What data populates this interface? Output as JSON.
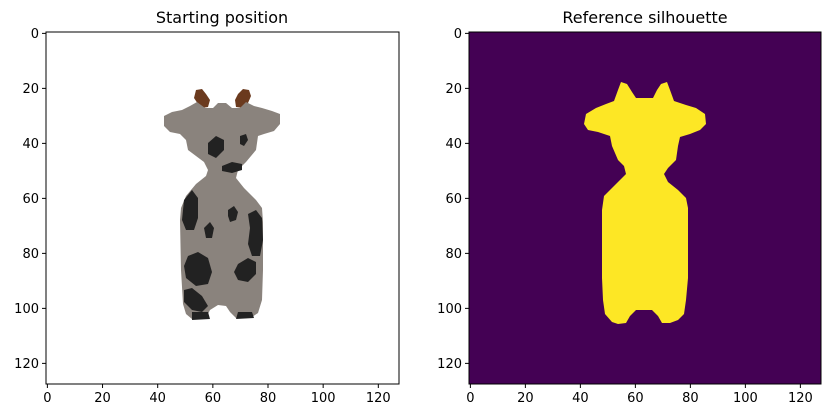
{
  "chart_data": [
    {
      "type": "image",
      "title": "Starting position",
      "xlim": [
        0,
        127
      ],
      "ylim": [
        127,
        0
      ],
      "xticks": [
        0,
        20,
        40,
        60,
        80,
        100,
        120
      ],
      "yticks": [
        0,
        20,
        40,
        60,
        80,
        100,
        120
      ],
      "xtick_labels": [
        "0",
        "20",
        "40",
        "60",
        "80",
        "100",
        "120"
      ],
      "ytick_labels": [
        "0",
        "20",
        "40",
        "60",
        "80",
        "100",
        "120"
      ],
      "background_color": "#ffffff",
      "object": "cow",
      "body_color": "#8a837d",
      "spot_color": "#222222",
      "horn_color": "#6b3a1e"
    },
    {
      "type": "image",
      "title": "Reference silhouette",
      "xlim": [
        0,
        127
      ],
      "ylim": [
        127,
        0
      ],
      "xticks": [
        0,
        20,
        40,
        60,
        80,
        100,
        120
      ],
      "yticks": [
        0,
        20,
        40,
        60,
        80,
        100,
        120
      ],
      "xtick_labels": [
        "0",
        "20",
        "40",
        "60",
        "80",
        "100",
        "120"
      ],
      "ytick_labels": [
        "0",
        "20",
        "40",
        "60",
        "80",
        "100",
        "120"
      ],
      "background_color": "#440154",
      "object": "cow silhouette",
      "silhouette_color": "#fde725",
      "colormap": "viridis"
    }
  ]
}
